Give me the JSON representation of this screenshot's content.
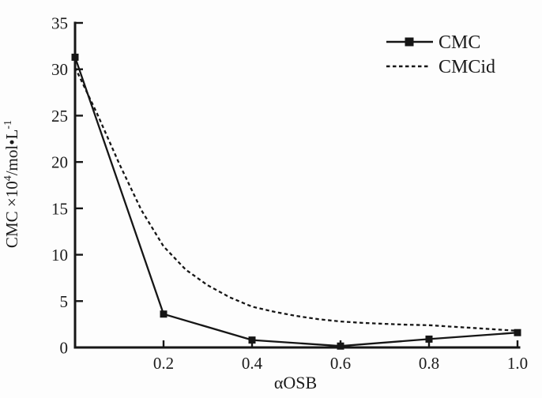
{
  "figure": {
    "background": "#fdfdfd",
    "ink_color": "#161616",
    "text_color": "#1b1b1b"
  },
  "chart_data": {
    "type": "line",
    "title": "",
    "xlabel": "αOSB",
    "ylabel": "CMC ×10⁴/mol•L⁻¹",
    "ylabel_parts": {
      "pre": "CMC ×10",
      "sup1": "4",
      "mid": "/mol•L",
      "sup2": "-1"
    },
    "xlim": [
      0,
      1.0
    ],
    "ylim": [
      0,
      35
    ],
    "xticks": [
      0.2,
      0.4,
      0.6,
      0.8,
      1.0
    ],
    "xtick_labels": [
      "0.2",
      "0.4",
      "0.6",
      "0.8",
      "1.0"
    ],
    "yticks": [
      0,
      5,
      10,
      15,
      20,
      25,
      30,
      35
    ],
    "ytick_labels": [
      "0",
      "5",
      "10",
      "15",
      "20",
      "25",
      "30",
      "35"
    ],
    "grid": false,
    "legend_position": "top-right",
    "series": [
      {
        "name": "CMC",
        "line_style": "solid",
        "marker": "square",
        "x": [
          0,
          0.2,
          0.4,
          0.6,
          0.8,
          1.0
        ],
        "y": [
          31.3,
          3.6,
          0.8,
          0.15,
          0.9,
          1.6
        ]
      },
      {
        "name": "CMCid",
        "line_style": "dashed",
        "marker": "none",
        "x": [
          0,
          0.05,
          0.1,
          0.15,
          0.2,
          0.25,
          0.3,
          0.35,
          0.4,
          0.45,
          0.5,
          0.55,
          0.6,
          0.65,
          0.7,
          0.75,
          0.8,
          0.85,
          0.9,
          0.95,
          1.0
        ],
        "y": [
          30.2,
          25.2,
          19.8,
          14.8,
          10.9,
          8.4,
          6.7,
          5.4,
          4.4,
          3.85,
          3.4,
          3.05,
          2.8,
          2.65,
          2.55,
          2.45,
          2.4,
          2.25,
          2.1,
          1.95,
          1.8
        ]
      }
    ]
  },
  "legend": {
    "items": [
      {
        "label": "CMC",
        "swatch": "solid-line-with-square-marker"
      },
      {
        "label": "CMCid",
        "swatch": "dashed-line"
      }
    ]
  }
}
